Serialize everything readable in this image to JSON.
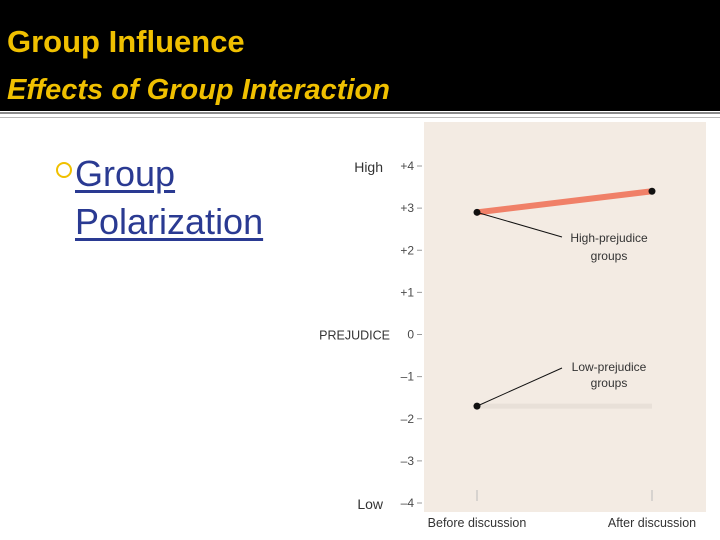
{
  "slide": {
    "title": "Group Influence",
    "subtitle": "Effects of Group Interaction",
    "bullet": "Group Polarization",
    "accent_color": "#f0c000",
    "link_color": "#2a3a92",
    "header_background": "#000000"
  },
  "chart_data": {
    "type": "line",
    "title": "",
    "xlabel": "",
    "ylabel": "PREJUDICE",
    "categories": [
      "Before discussion",
      "After discussion"
    ],
    "ylim": [
      -4,
      4
    ],
    "yticks": [
      "+4",
      "+3",
      "+2",
      "+1",
      "0",
      "–1",
      "–2",
      "–3",
      "–4"
    ],
    "y_high_label": "High",
    "y_low_label": "Low",
    "grid": false,
    "legend": "none",
    "plot_background": "#f3ebe3",
    "series": [
      {
        "name": "High-prejudice groups",
        "label_lines": [
          "High-prejudice",
          "groups"
        ],
        "values": [
          2.9,
          3.4
        ],
        "color": "#f08068"
      },
      {
        "name": "Low-prejudice groups",
        "label_lines": [
          "Low-prejudice",
          "groups"
        ],
        "values": [
          -1.7,
          -1.7
        ],
        "color": "#e8e0d8"
      }
    ]
  }
}
